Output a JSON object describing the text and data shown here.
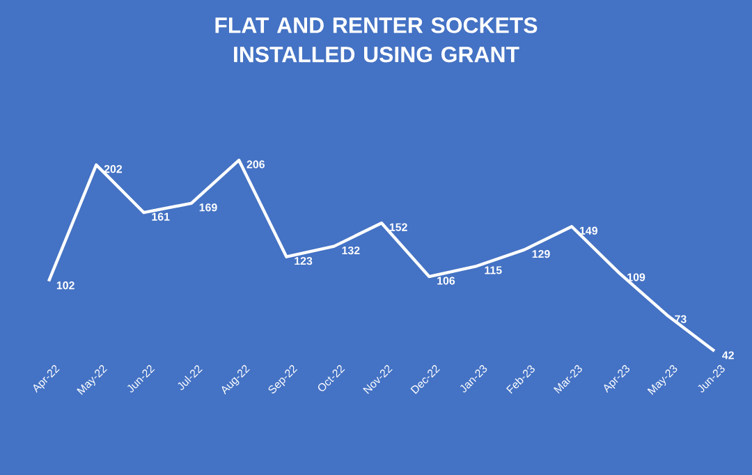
{
  "chart_data": {
    "type": "line",
    "title": "FLAT AND RENTER SOCKETS INSTALLED USING GRANT",
    "categories": [
      "Apr-22",
      "May-22",
      "Jun-22",
      "Jul-22",
      "Aug-22",
      "Sep-22",
      "Oct-22",
      "Nov-22",
      "Dec-22",
      "Jan-23",
      "Feb-23",
      "Mar-23",
      "Apr-23",
      "May-23",
      "Jun-23"
    ],
    "values": [
      102,
      202,
      161,
      169,
      206,
      123,
      132,
      152,
      106,
      115,
      129,
      149,
      109,
      73,
      42
    ],
    "color": "#ffffff",
    "data_labels": true
  }
}
